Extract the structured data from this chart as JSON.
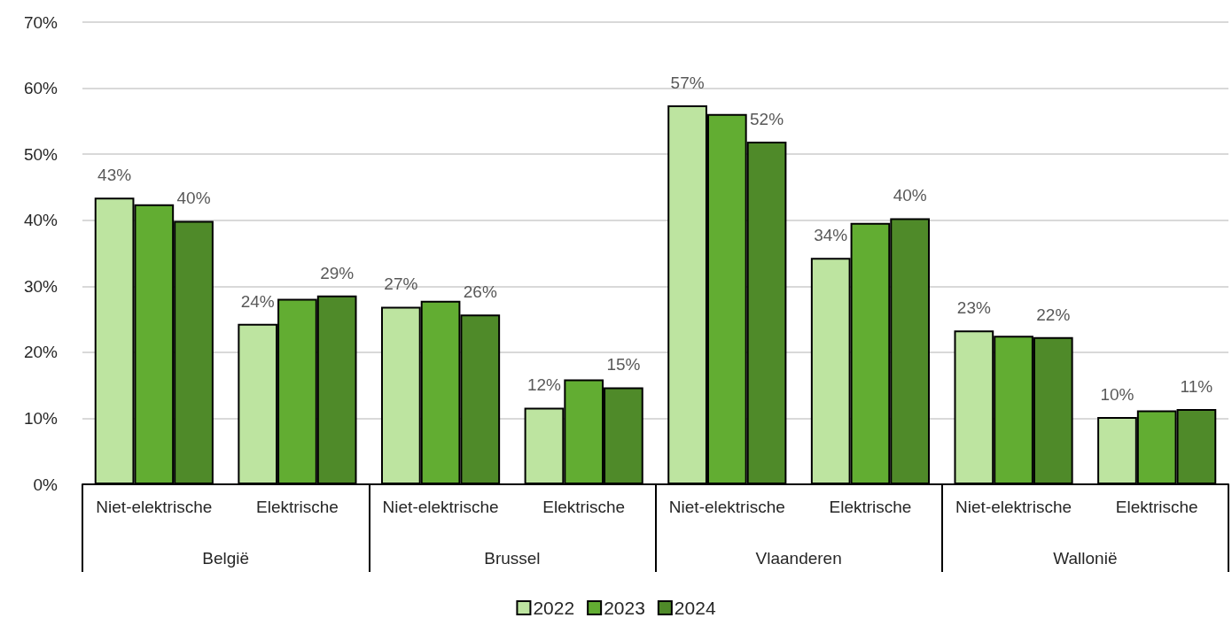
{
  "chart_data": {
    "type": "bar",
    "categories": [
      "Niet-elektrische",
      "Elektrische",
      "Niet-elektrische",
      "Elektrische",
      "Niet-elektrische",
      "Elektrische",
      "Niet-elektrische",
      "Elektrische"
    ],
    "series": [
      {
        "name": "2022",
        "color": "#bde4a0",
        "values": [
          43.4,
          24.3,
          26.9,
          11.6,
          57.4,
          34.3,
          23.3,
          10.2
        ],
        "value_labels": [
          "43%",
          "24%",
          "27%",
          "12%",
          "57%",
          "34%",
          "23%",
          "10%"
        ]
      },
      {
        "name": "2023",
        "color": "#62ad32",
        "values": [
          42.4,
          28.1,
          27.8,
          15.9,
          56.1,
          39.6,
          22.5,
          11.2
        ]
      },
      {
        "name": "2024",
        "color": "#4f8a29",
        "values": [
          39.9,
          28.6,
          25.7,
          14.7,
          51.9,
          40.3,
          22.3,
          11.4
        ],
        "value_labels": [
          "40%",
          "29%",
          "26%",
          "15%",
          "52%",
          "40%",
          "22%",
          "11%"
        ]
      }
    ],
    "ylim": [
      0,
      70
    ],
    "yticks": [
      {
        "value": 0,
        "label": "0%"
      },
      {
        "value": 10,
        "label": "10%"
      },
      {
        "value": 20,
        "label": "20%"
      },
      {
        "value": 30,
        "label": "30%"
      },
      {
        "value": 40,
        "label": "40%"
      },
      {
        "value": 50,
        "label": "50%"
      },
      {
        "value": 60,
        "label": "60%"
      },
      {
        "value": 70,
        "label": "70%"
      }
    ],
    "grid": "y",
    "legend": "bottom",
    "annotations": [
      "België",
      "Brussel",
      "Vlaanderen",
      "Wallonië"
    ]
  }
}
